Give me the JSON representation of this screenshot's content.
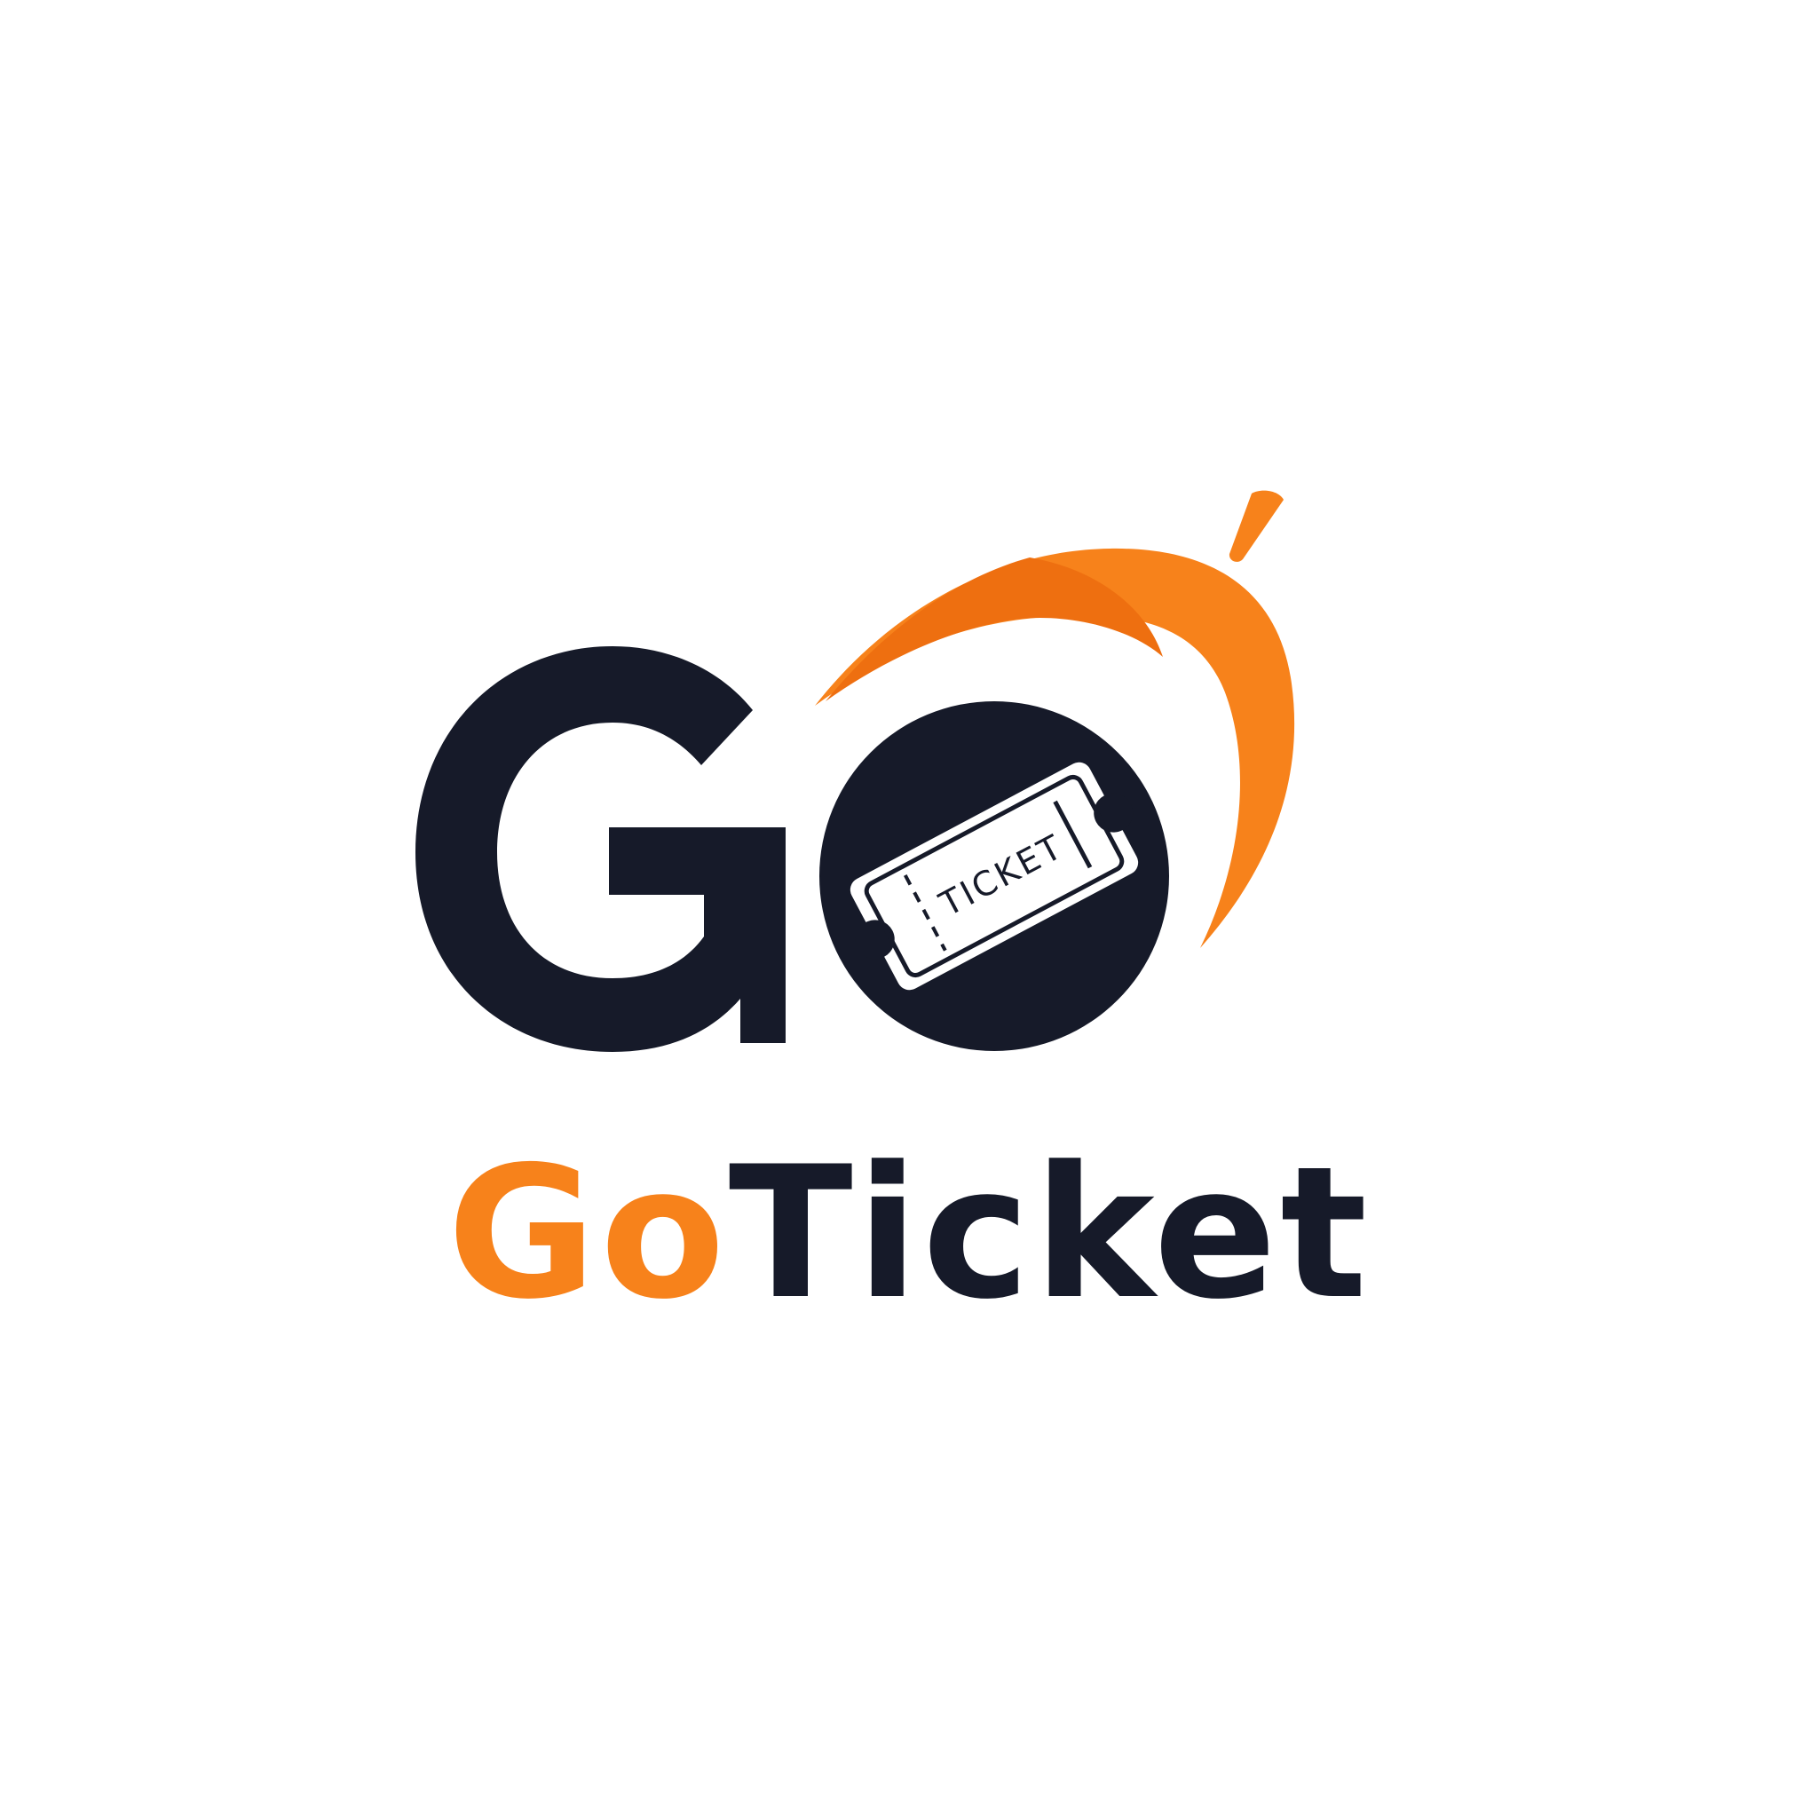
{
  "brand": {
    "logo_mark_letters": "GO",
    "ticket_stub_text": "TICKET",
    "wordmark_part1": "Go",
    "wordmark_part2": "Ticket"
  },
  "colors": {
    "navy": "#161a29",
    "orange": "#f7821b",
    "orange_dark": "#ee6f10",
    "background": "#ffffff"
  },
  "icons": [
    "ticket-icon",
    "swoosh-icon"
  ]
}
